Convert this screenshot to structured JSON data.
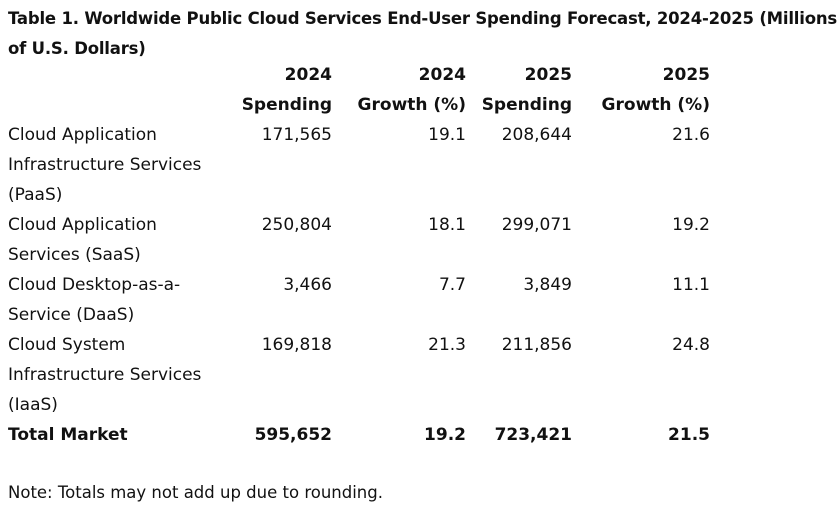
{
  "title": "Table 1. Worldwide Public Cloud Services End-User Spending Forecast, 2024-2025 (Millions of U.S. Dollars)",
  "columns": [
    {
      "line1": "",
      "line2": ""
    },
    {
      "line1": "2024",
      "line2": "Spending"
    },
    {
      "line1": "2024",
      "line2": "Growth (%)"
    },
    {
      "line1": "2025",
      "line2": "Spending"
    },
    {
      "line1": "2025",
      "line2": "Growth (%)"
    }
  ],
  "rows": [
    {
      "segment": [
        "Cloud Application",
        "Infrastructure Services",
        "(PaaS)"
      ],
      "spend_2024": "171,565",
      "growth_2024": "19.1",
      "spend_2025": "208,644",
      "growth_2025": "21.6"
    },
    {
      "segment": [
        "Cloud Application",
        "Services (SaaS)"
      ],
      "spend_2024": "250,804",
      "growth_2024": "18.1",
      "spend_2025": "299,071",
      "growth_2025": "19.2"
    },
    {
      "segment": [
        "Cloud Desktop-as-a-",
        "Service (DaaS)"
      ],
      "spend_2024": "3,466",
      "growth_2024": "7.7",
      "spend_2025": "3,849",
      "growth_2025": "11.1"
    },
    {
      "segment": [
        "Cloud System",
        "Infrastructure Services",
        "(IaaS)"
      ],
      "spend_2024": "169,818",
      "growth_2024": "21.3",
      "spend_2025": "211,856",
      "growth_2025": "24.8"
    }
  ],
  "total": {
    "segment": "Total Market",
    "spend_2024": "595,652",
    "growth_2024": "19.2",
    "spend_2025": "723,421",
    "growth_2025": "21.5"
  },
  "note": "Note: Totals may not add up due to rounding."
}
